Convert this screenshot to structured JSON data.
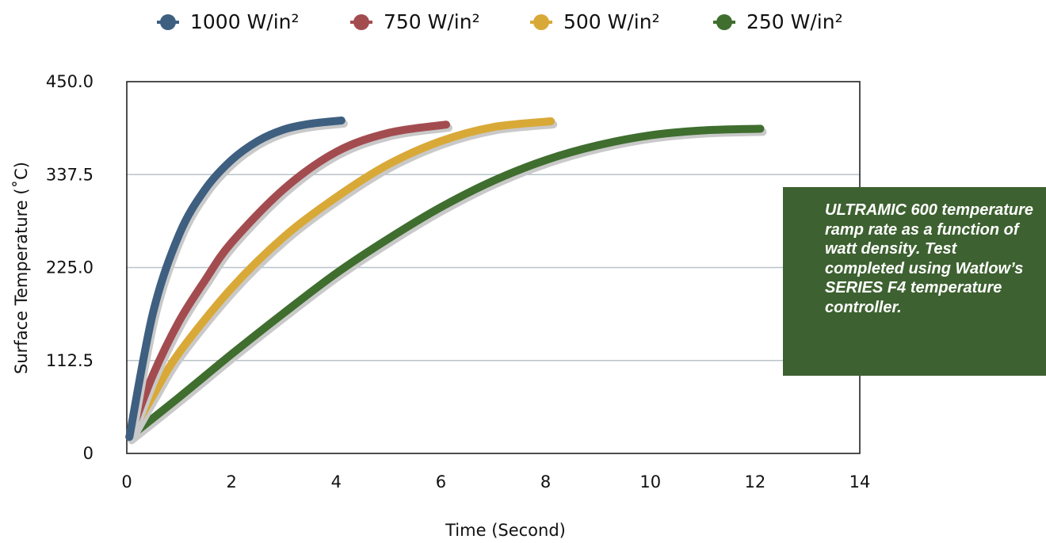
{
  "chart_data": {
    "type": "line",
    "xlabel": "Time (Second)",
    "ylabel": "Surface Temperature (˚C)",
    "xlim": [
      0,
      14
    ],
    "ylim": [
      0,
      450
    ],
    "x_ticks": [
      "0",
      "2",
      "4",
      "6",
      "8",
      "10",
      "12",
      "14"
    ],
    "y_ticks": [
      "0",
      "112.5",
      "225.0",
      "337.5",
      "450.0"
    ],
    "grid": "horizontal",
    "legend_position": "top",
    "series": [
      {
        "name": "1000 W/in²",
        "color": "#3e5f80",
        "x": [
          0.05,
          0.5,
          1.0,
          1.5,
          2.0,
          2.5,
          3.0,
          3.5,
          4.1
        ],
        "y": [
          20,
          170,
          265,
          320,
          355,
          378,
          392,
          399,
          403
        ]
      },
      {
        "name": "750 W/in²",
        "color": "#a34c50",
        "x": [
          0.05,
          0.5,
          1.0,
          1.5,
          2.0,
          3.0,
          4.0,
          5.0,
          6.1
        ],
        "y": [
          20,
          95,
          160,
          210,
          255,
          320,
          365,
          388,
          398
        ]
      },
      {
        "name": "500 W/in²",
        "color": "#d9a938",
        "x": [
          0.05,
          0.5,
          1.0,
          2.0,
          3.0,
          4.0,
          5.0,
          6.0,
          7.0,
          8.1
        ],
        "y": [
          20,
          70,
          122,
          200,
          262,
          310,
          350,
          378,
          395,
          402
        ]
      },
      {
        "name": "250 W/in²",
        "color": "#3f6e2f",
        "x": [
          0.05,
          1.0,
          2.0,
          3.0,
          4.0,
          5.0,
          6.0,
          7.0,
          8.0,
          9.0,
          10.0,
          11.0,
          12.1
        ],
        "y": [
          20,
          68,
          120,
          170,
          218,
          260,
          298,
          330,
          355,
          373,
          385,
          391,
          393
        ]
      }
    ]
  },
  "note": {
    "text": "ULTRAMIC 600 temperature ramp rate as a function of watt density. Test completed using Watlow’s SERIES F4 temperature controller."
  }
}
